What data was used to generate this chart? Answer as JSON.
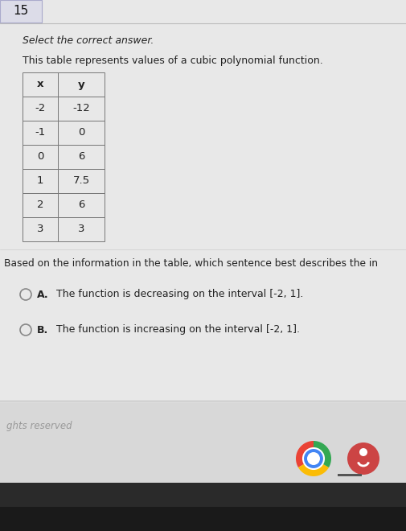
{
  "question_number": "15",
  "instruction": "Select the correct answer.",
  "description": "This table represents values of a cubic polynomial function.",
  "table_headers": [
    "x",
    "y"
  ],
  "table_data": [
    [
      "-2",
      "-12"
    ],
    [
      "-1",
      "0"
    ],
    [
      "0",
      "6"
    ],
    [
      "1",
      "7.5"
    ],
    [
      "2",
      "6"
    ],
    [
      "3",
      "3"
    ]
  ],
  "question_text": "Based on the information in the table, which sentence best describes the in",
  "options": [
    {
      "label": "A.",
      "text": "The function is decreasing on the interval [-2, 1]."
    },
    {
      "label": "B.",
      "text": "The function is increasing on the interval [-2, 1]."
    }
  ],
  "footer_text": "ghts reserved",
  "bg_color": "#e8e8e8",
  "bg_color_content": "#e8e8e8",
  "bg_color_footer_strip": "#d0d0d0",
  "bg_color_bottom": "#3a3a3a",
  "number_box_bg": "#e0e0e8",
  "number_box_border": "#aaaabb",
  "table_border_color": "#888888",
  "text_color": "#222222",
  "text_color_dark": "#333333",
  "footer_text_color": "#888888",
  "divider_color": "#cccccc"
}
